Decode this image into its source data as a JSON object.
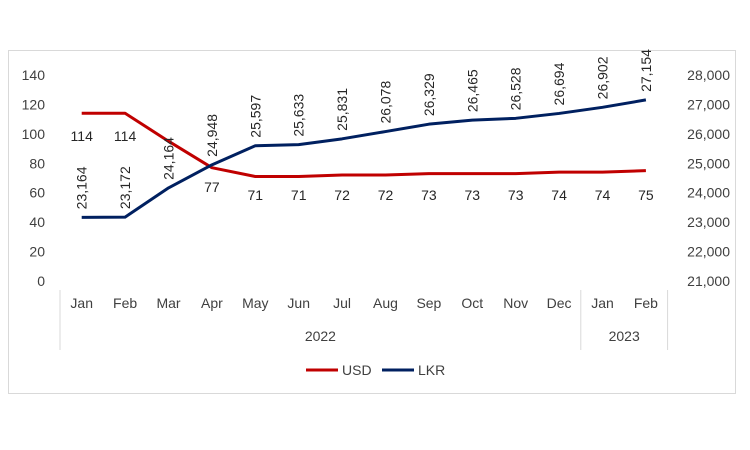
{
  "chart_data": {
    "type": "line",
    "title": "",
    "categories": [
      "Jan",
      "Feb",
      "Mar",
      "Apr",
      "May",
      "Jun",
      "Jul",
      "Aug",
      "Sep",
      "Oct",
      "Nov",
      "Dec",
      "Jan",
      "Feb"
    ],
    "year_groups": [
      {
        "label": "2022",
        "start": 0,
        "end": 11
      },
      {
        "label": "2023",
        "start": 12,
        "end": 13
      }
    ],
    "y_left": {
      "min": 0,
      "max": 140,
      "step": 20,
      "ticks": [
        "0",
        "20",
        "40",
        "60",
        "80",
        "100",
        "120",
        "140"
      ]
    },
    "y_right": {
      "min": 21000,
      "max": 28000,
      "step": 1000,
      "ticks": [
        "21,000",
        "22,000",
        "23,000",
        "24,000",
        "25,000",
        "26,000",
        "27,000",
        "28,000"
      ]
    },
    "series": [
      {
        "name": "USD",
        "axis": "left",
        "color": "#c00000",
        "values": [
          114,
          114,
          95,
          77,
          71,
          71,
          72,
          72,
          73,
          73,
          73,
          74,
          74,
          75
        ],
        "labels": [
          "114",
          "114",
          "",
          "77",
          "71",
          "71",
          "72",
          "72",
          "73",
          "73",
          "73",
          "74",
          "74",
          "75"
        ]
      },
      {
        "name": "LKR",
        "axis": "right",
        "color": "#002060",
        "values": [
          23164,
          23172,
          24164,
          24948,
          25597,
          25633,
          25831,
          26078,
          26329,
          26465,
          26528,
          26694,
          26902,
          27154
        ],
        "labels": [
          "23,164",
          "23,172",
          "24,164",
          "24,948",
          "25,597",
          "25,633",
          "25,831",
          "26,078",
          "26,329",
          "26,465",
          "26,528",
          "26,694",
          "26,902",
          "27,154"
        ]
      }
    ],
    "legend": {
      "position": "bottom",
      "entries": [
        "USD",
        "LKR"
      ]
    },
    "grid": false
  }
}
